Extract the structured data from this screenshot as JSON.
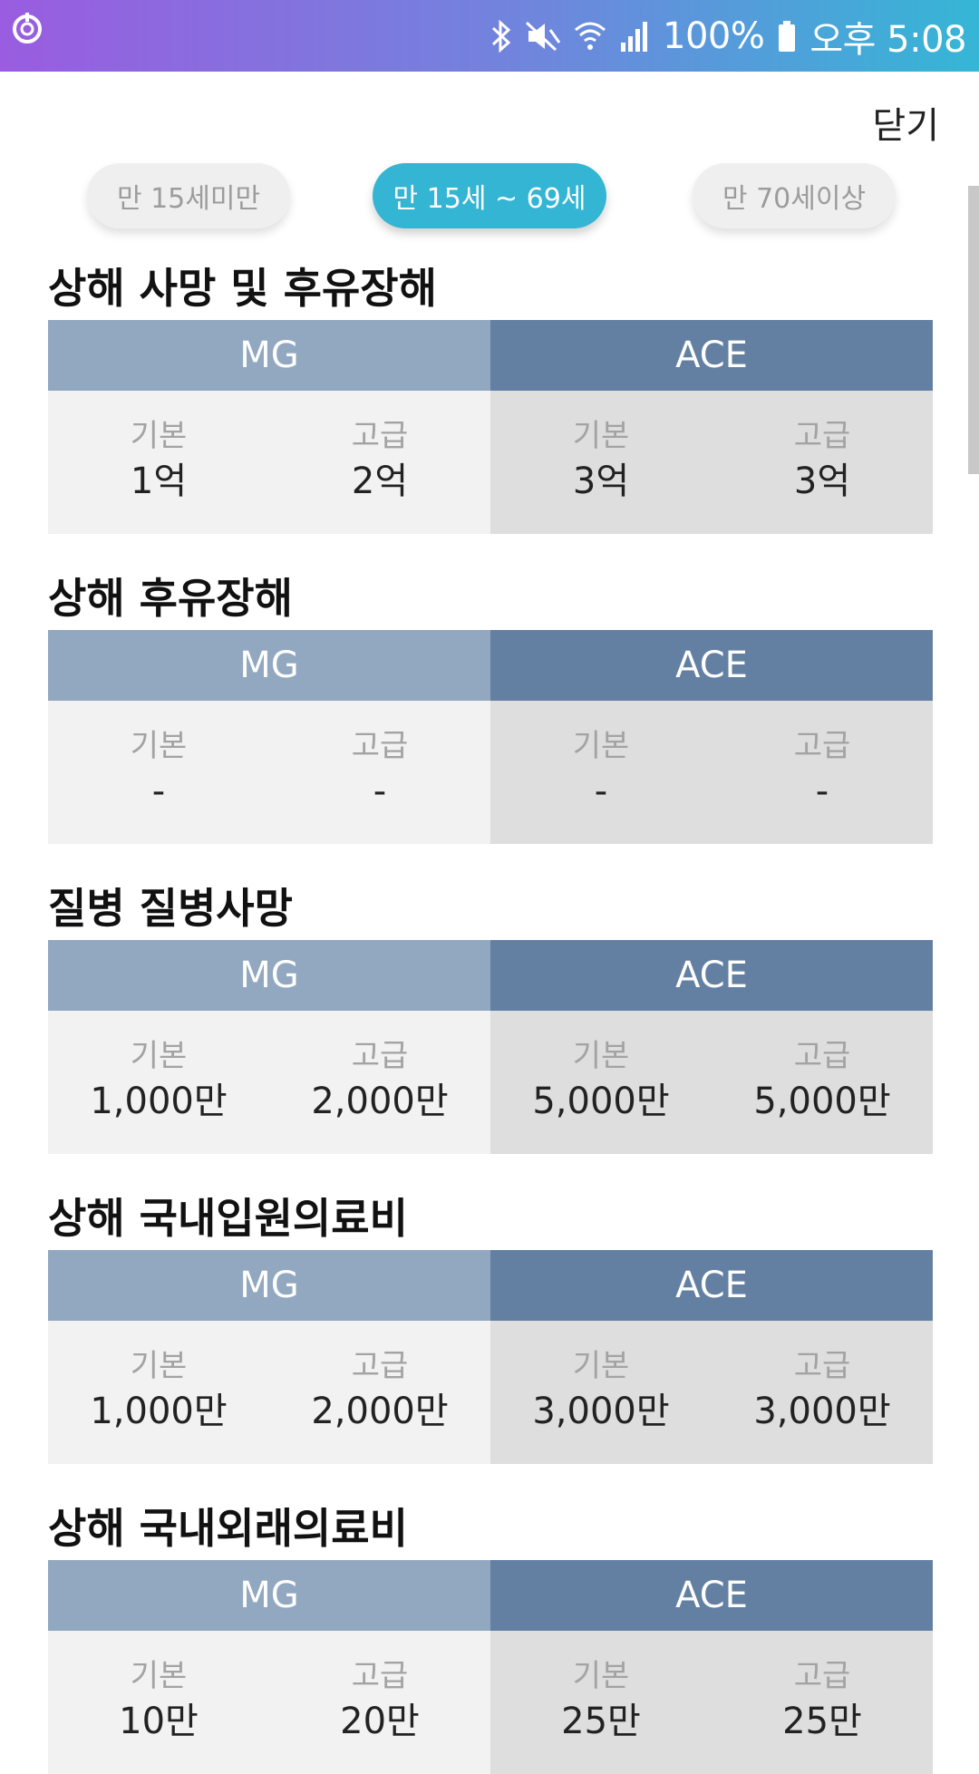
{
  "status_bar": {
    "battery": "100%",
    "time": "오후 5:08",
    "icons": [
      "app-icon",
      "bluetooth-icon",
      "mute-icon",
      "wifi-icon",
      "signal-icon",
      "battery-icon"
    ]
  },
  "header": {
    "close_label": "닫기"
  },
  "age_tabs": [
    {
      "label": "만 15세미만",
      "active": false
    },
    {
      "label": "만 15세 ~ 69세",
      "active": true
    },
    {
      "label": "만 70세이상",
      "active": false
    }
  ],
  "table_headers": {
    "left": "MG",
    "right": "ACE",
    "basic": "기본",
    "premium": "고급"
  },
  "sections": [
    {
      "title": "상해 사망 및 후유장해",
      "mg_basic": "1억",
      "mg_premium": "2억",
      "ace_basic": "3억",
      "ace_premium": "3억"
    },
    {
      "title": "상해 후유장해",
      "mg_basic": "-",
      "mg_premium": "-",
      "ace_basic": "-",
      "ace_premium": "-"
    },
    {
      "title": "질병 질병사망",
      "mg_basic": "1,000만",
      "mg_premium": "2,000만",
      "ace_basic": "5,000만",
      "ace_premium": "5,000만"
    },
    {
      "title": "상해 국내입원의료비",
      "mg_basic": "1,000만",
      "mg_premium": "2,000만",
      "ace_basic": "3,000만",
      "ace_premium": "3,000만"
    },
    {
      "title": "상해 국내외래의료비",
      "mg_basic": "10만",
      "mg_premium": "20만",
      "ace_basic": "25만",
      "ace_premium": "25만"
    }
  ],
  "colors": {
    "accent": "#33b5d3",
    "mg_header": "#91a8c0",
    "ace_header": "#6380a3"
  }
}
